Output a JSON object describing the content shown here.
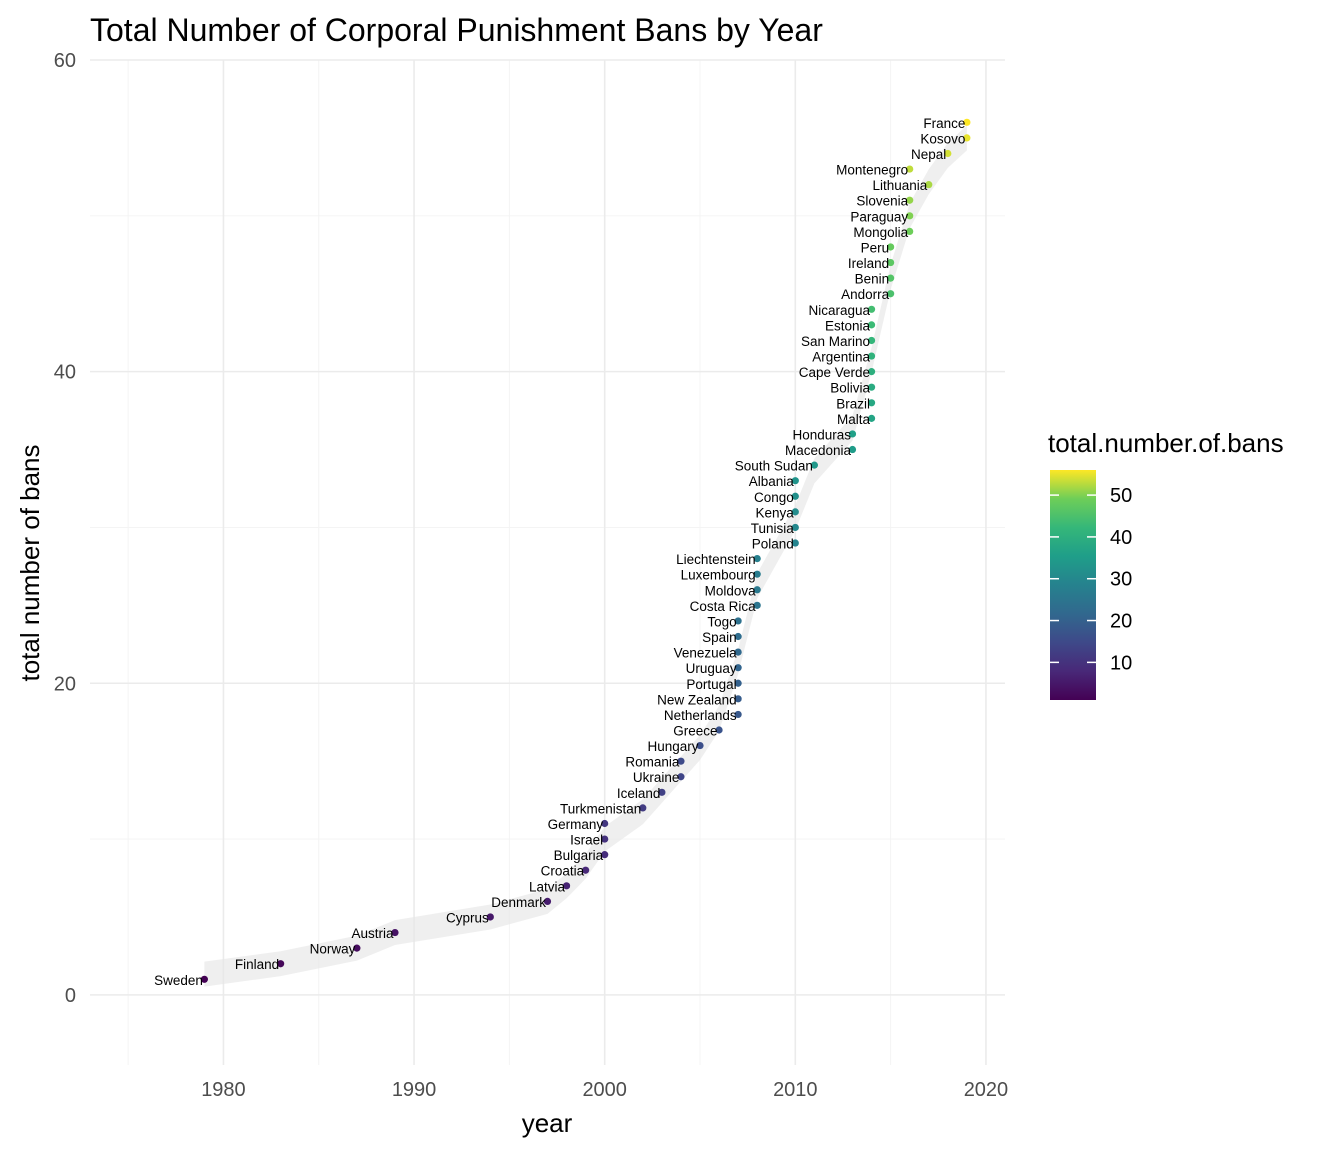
{
  "chart_data": {
    "type": "scatter",
    "title": "Total Number of Corporal Punishment Bans by Year",
    "xlabel": "year",
    "ylabel": "total number of bans",
    "xlim": [
      1973,
      2021
    ],
    "ylim": [
      -4.5,
      60
    ],
    "x_ticks": [
      1980,
      1990,
      2000,
      2010,
      2020
    ],
    "y_ticks": [
      0,
      20,
      40,
      60
    ],
    "grid": true,
    "smooth_trend": true,
    "legend": {
      "title": "total.number.of.bans",
      "position": "right",
      "type": "colorbar",
      "colormap": "viridis",
      "range": [
        1,
        56
      ],
      "ticks": [
        10,
        20,
        30,
        40,
        50
      ]
    },
    "points": [
      {
        "country": "Sweden",
        "year": 1979,
        "total": 1
      },
      {
        "country": "Finland",
        "year": 1983,
        "total": 2
      },
      {
        "country": "Norway",
        "year": 1987,
        "total": 3
      },
      {
        "country": "Austria",
        "year": 1989,
        "total": 4
      },
      {
        "country": "Cyprus",
        "year": 1994,
        "total": 5
      },
      {
        "country": "Denmark",
        "year": 1997,
        "total": 6
      },
      {
        "country": "Latvia",
        "year": 1998,
        "total": 7
      },
      {
        "country": "Croatia",
        "year": 1999,
        "total": 8
      },
      {
        "country": "Bulgaria",
        "year": 2000,
        "total": 9
      },
      {
        "country": "Israel",
        "year": 2000,
        "total": 10
      },
      {
        "country": "Germany",
        "year": 2000,
        "total": 11
      },
      {
        "country": "Turkmenistan",
        "year": 2002,
        "total": 12
      },
      {
        "country": "Iceland",
        "year": 2003,
        "total": 13
      },
      {
        "country": "Ukraine",
        "year": 2004,
        "total": 14
      },
      {
        "country": "Romania",
        "year": 2004,
        "total": 15
      },
      {
        "country": "Hungary",
        "year": 2005,
        "total": 16
      },
      {
        "country": "Greece",
        "year": 2006,
        "total": 17
      },
      {
        "country": "Netherlands",
        "year": 2007,
        "total": 18
      },
      {
        "country": "New Zealand",
        "year": 2007,
        "total": 19
      },
      {
        "country": "Portugal",
        "year": 2007,
        "total": 20
      },
      {
        "country": "Uruguay",
        "year": 2007,
        "total": 21
      },
      {
        "country": "Venezuela",
        "year": 2007,
        "total": 22
      },
      {
        "country": "Spain",
        "year": 2007,
        "total": 23
      },
      {
        "country": "Togo",
        "year": 2007,
        "total": 24
      },
      {
        "country": "Costa Rica",
        "year": 2008,
        "total": 25
      },
      {
        "country": "Moldova",
        "year": 2008,
        "total": 26
      },
      {
        "country": "Luxembourg",
        "year": 2008,
        "total": 27
      },
      {
        "country": "Liechtenstein",
        "year": 2008,
        "total": 28
      },
      {
        "country": "Poland",
        "year": 2010,
        "total": 29
      },
      {
        "country": "Tunisia",
        "year": 2010,
        "total": 30
      },
      {
        "country": "Kenya",
        "year": 2010,
        "total": 31
      },
      {
        "country": "Congo",
        "year": 2010,
        "total": 32
      },
      {
        "country": "Albania",
        "year": 2010,
        "total": 33
      },
      {
        "country": "South Sudan",
        "year": 2011,
        "total": 34
      },
      {
        "country": "Macedonia",
        "year": 2013,
        "total": 35
      },
      {
        "country": "Honduras",
        "year": 2013,
        "total": 36
      },
      {
        "country": "Malta",
        "year": 2014,
        "total": 37
      },
      {
        "country": "Brazil",
        "year": 2014,
        "total": 38
      },
      {
        "country": "Bolivia",
        "year": 2014,
        "total": 39
      },
      {
        "country": "Cape Verde",
        "year": 2014,
        "total": 40
      },
      {
        "country": "Argentina",
        "year": 2014,
        "total": 41
      },
      {
        "country": "San Marino",
        "year": 2014,
        "total": 42
      },
      {
        "country": "Estonia",
        "year": 2014,
        "total": 43
      },
      {
        "country": "Nicaragua",
        "year": 2014,
        "total": 44
      },
      {
        "country": "Andorra",
        "year": 2015,
        "total": 45
      },
      {
        "country": "Benin",
        "year": 2015,
        "total": 46
      },
      {
        "country": "Ireland",
        "year": 2015,
        "total": 47
      },
      {
        "country": "Peru",
        "year": 2015,
        "total": 48
      },
      {
        "country": "Mongolia",
        "year": 2016,
        "total": 49
      },
      {
        "country": "Paraguay",
        "year": 2016,
        "total": 50
      },
      {
        "country": "Slovenia",
        "year": 2016,
        "total": 51
      },
      {
        "country": "Lithuania",
        "year": 2017,
        "total": 52
      },
      {
        "country": "Montenegro",
        "year": 2016,
        "total": 53
      },
      {
        "country": "Nepal",
        "year": 2018,
        "total": 54
      },
      {
        "country": "Kosovo",
        "year": 2019,
        "total": 55
      },
      {
        "country": "France",
        "year": 2019,
        "total": 56
      }
    ]
  }
}
